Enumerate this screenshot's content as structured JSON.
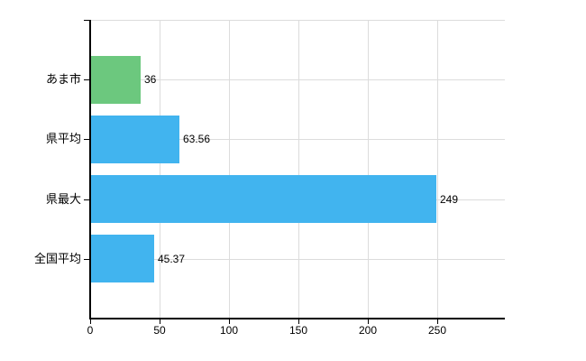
{
  "chart_data": {
    "type": "bar",
    "orientation": "horizontal",
    "title": "",
    "xlabel": "",
    "ylabel": "",
    "categories": [
      "あま市",
      "県平均",
      "県最大",
      "全国平均"
    ],
    "values": [
      36,
      63.56,
      249,
      45.37
    ],
    "value_labels": [
      "36",
      "63.56",
      "249",
      "45.37"
    ],
    "series": [
      {
        "name": "value",
        "values": [
          36,
          63.56,
          249,
          45.37
        ]
      }
    ],
    "bar_colors": [
      "#6cc87e",
      "#41b4ef",
      "#41b4ef",
      "#41b4ef"
    ],
    "x_ticks": [
      0,
      50,
      100,
      150,
      200,
      250
    ],
    "x_tick_labels": [
      "0",
      "50",
      "100",
      "150",
      "200",
      "250"
    ],
    "xlim": [
      0,
      299
    ],
    "grid": true,
    "legend": false,
    "colors": {
      "background": "#ffffff",
      "gridline": "#dcdcdc",
      "axis": "#000000",
      "text": "#000000",
      "bar_blue": "#41b4ef",
      "bar_green": "#6cc87e"
    }
  }
}
